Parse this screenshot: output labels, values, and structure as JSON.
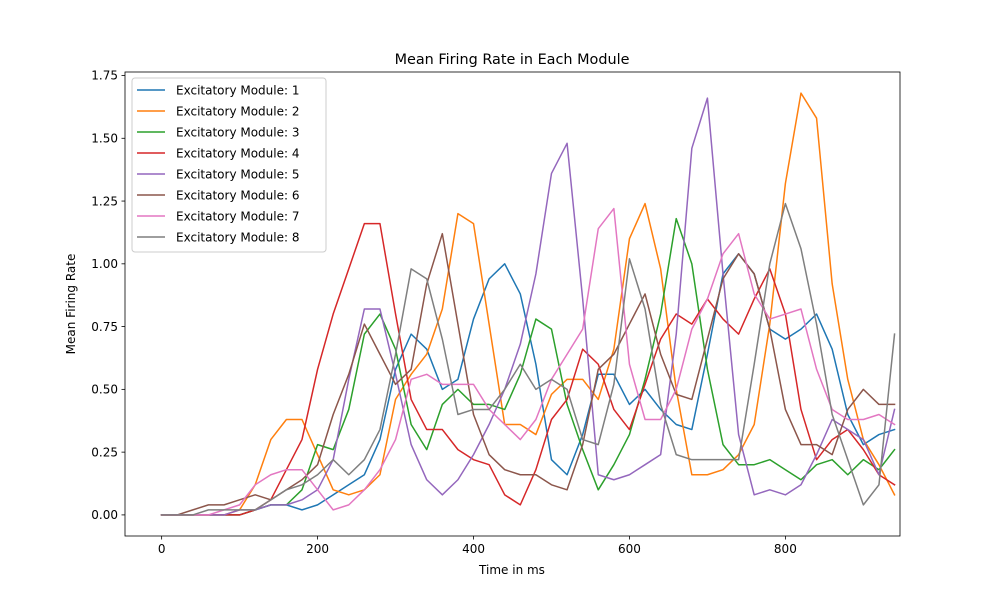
{
  "chart_data": {
    "type": "line",
    "title": "Mean Firing Rate in Each Module",
    "xlabel": "Time in ms",
    "ylabel": "Mean Firing Rate",
    "xlim": [
      -47,
      947
    ],
    "ylim": [
      -0.084,
      1.764
    ],
    "xticks": [
      0,
      200,
      400,
      600,
      800
    ],
    "yticks": [
      0.0,
      0.25,
      0.5,
      0.75,
      1.0,
      1.25,
      1.5,
      1.75
    ],
    "ytick_labels": [
      "0.00",
      "0.25",
      "0.50",
      "0.75",
      "1.00",
      "1.25",
      "1.50",
      "1.75"
    ],
    "grid": false,
    "legend_position": "upper-left",
    "x": [
      0,
      20,
      40,
      60,
      80,
      100,
      120,
      140,
      160,
      180,
      200,
      220,
      240,
      260,
      280,
      300,
      320,
      340,
      360,
      380,
      400,
      420,
      440,
      460,
      480,
      500,
      520,
      540,
      560,
      580,
      600,
      620,
      640,
      660,
      680,
      700,
      720,
      740,
      760,
      780,
      800,
      820,
      840,
      860,
      880,
      900,
      920,
      940
    ],
    "series": [
      {
        "name": "Excitatory Module: 1",
        "color": "#1f77b4",
        "values": [
          0,
          0,
          0,
          0,
          0,
          0,
          0.02,
          0.04,
          0.04,
          0.02,
          0.04,
          0.08,
          0.12,
          0.16,
          0.3,
          0.58,
          0.72,
          0.66,
          0.5,
          0.54,
          0.78,
          0.94,
          1.0,
          0.88,
          0.6,
          0.22,
          0.16,
          0.32,
          0.56,
          0.56,
          0.44,
          0.5,
          0.42,
          0.36,
          0.34,
          0.64,
          0.96,
          1.04,
          0.96,
          0.74,
          0.7,
          0.74,
          0.8,
          0.66,
          0.4,
          0.28,
          0.32,
          0.34
        ]
      },
      {
        "name": "Excitatory Module: 2",
        "color": "#ff7f0e",
        "values": [
          0,
          0,
          0,
          0,
          0,
          0.02,
          0.12,
          0.3,
          0.38,
          0.38,
          0.24,
          0.1,
          0.08,
          0.1,
          0.16,
          0.46,
          0.56,
          0.64,
          0.82,
          1.2,
          1.16,
          0.76,
          0.36,
          0.36,
          0.32,
          0.48,
          0.54,
          0.54,
          0.46,
          0.66,
          1.1,
          1.24,
          0.98,
          0.5,
          0.16,
          0.16,
          0.18,
          0.24,
          0.36,
          0.76,
          1.32,
          1.68,
          1.58,
          0.92,
          0.54,
          0.3,
          0.2,
          0.08
        ]
      },
      {
        "name": "Excitatory Module: 3",
        "color": "#2ca02c",
        "values": [
          0,
          0,
          0,
          0,
          0,
          0,
          0.02,
          0.04,
          0.04,
          0.1,
          0.28,
          0.26,
          0.42,
          0.72,
          0.8,
          0.66,
          0.36,
          0.26,
          0.44,
          0.5,
          0.44,
          0.44,
          0.42,
          0.56,
          0.78,
          0.74,
          0.44,
          0.26,
          0.1,
          0.2,
          0.32,
          0.54,
          0.8,
          1.18,
          1.0,
          0.58,
          0.28,
          0.2,
          0.2,
          0.22,
          0.18,
          0.14,
          0.2,
          0.22,
          0.16,
          0.22,
          0.18,
          0.26
        ]
      },
      {
        "name": "Excitatory Module: 4",
        "color": "#d62728",
        "values": [
          0,
          0,
          0,
          0,
          0,
          0,
          0.02,
          0.06,
          0.18,
          0.3,
          0.58,
          0.8,
          0.98,
          1.16,
          1.16,
          0.8,
          0.46,
          0.34,
          0.34,
          0.26,
          0.22,
          0.2,
          0.08,
          0.04,
          0.18,
          0.38,
          0.46,
          0.66,
          0.6,
          0.42,
          0.34,
          0.52,
          0.7,
          0.8,
          0.76,
          0.86,
          0.78,
          0.72,
          0.86,
          0.98,
          0.8,
          0.42,
          0.22,
          0.3,
          0.34,
          0.26,
          0.16,
          0.12
        ]
      },
      {
        "name": "Excitatory Module: 5",
        "color": "#9467bd",
        "values": [
          0,
          0,
          0,
          0,
          0,
          0.02,
          0.02,
          0.04,
          0.04,
          0.06,
          0.1,
          0.22,
          0.54,
          0.82,
          0.82,
          0.56,
          0.28,
          0.14,
          0.08,
          0.14,
          0.24,
          0.36,
          0.5,
          0.68,
          0.96,
          1.36,
          1.48,
          0.86,
          0.16,
          0.14,
          0.16,
          0.2,
          0.24,
          0.72,
          1.46,
          1.66,
          0.96,
          0.32,
          0.08,
          0.1,
          0.08,
          0.12,
          0.24,
          0.38,
          0.34,
          0.3,
          0.16,
          0.42
        ]
      },
      {
        "name": "Excitatory Module: 6",
        "color": "#8c564b",
        "values": [
          0,
          0,
          0.02,
          0.04,
          0.04,
          0.06,
          0.08,
          0.06,
          0.1,
          0.14,
          0.2,
          0.4,
          0.56,
          0.76,
          0.64,
          0.52,
          0.58,
          0.92,
          1.12,
          0.76,
          0.4,
          0.24,
          0.18,
          0.16,
          0.16,
          0.12,
          0.1,
          0.28,
          0.58,
          0.64,
          0.76,
          0.88,
          0.64,
          0.48,
          0.46,
          0.7,
          0.94,
          1.04,
          0.96,
          0.74,
          0.42,
          0.28,
          0.28,
          0.24,
          0.42,
          0.5,
          0.44,
          0.44
        ]
      },
      {
        "name": "Excitatory Module: 7",
        "color": "#e377c2",
        "values": [
          0,
          0,
          0,
          0,
          0.02,
          0.04,
          0.12,
          0.16,
          0.18,
          0.18,
          0.1,
          0.02,
          0.04,
          0.1,
          0.18,
          0.3,
          0.54,
          0.56,
          0.52,
          0.52,
          0.52,
          0.42,
          0.36,
          0.3,
          0.38,
          0.54,
          0.64,
          0.74,
          1.14,
          1.22,
          0.6,
          0.38,
          0.38,
          0.5,
          0.74,
          0.86,
          1.04,
          1.12,
          0.88,
          0.78,
          0.8,
          0.82,
          0.58,
          0.42,
          0.38,
          0.38,
          0.4,
          0.36
        ]
      },
      {
        "name": "Excitatory Module: 8",
        "color": "#7f7f7f",
        "values": [
          0,
          0,
          0,
          0.02,
          0.02,
          0.02,
          0.02,
          0.06,
          0.1,
          0.12,
          0.16,
          0.22,
          0.16,
          0.22,
          0.34,
          0.64,
          0.98,
          0.94,
          0.7,
          0.4,
          0.42,
          0.42,
          0.5,
          0.6,
          0.5,
          0.54,
          0.5,
          0.3,
          0.28,
          0.52,
          1.02,
          0.82,
          0.44,
          0.24,
          0.22,
          0.22,
          0.22,
          0.22,
          0.6,
          1.0,
          1.24,
          1.06,
          0.76,
          0.4,
          0.22,
          0.04,
          0.12,
          0.72
        ]
      }
    ]
  }
}
